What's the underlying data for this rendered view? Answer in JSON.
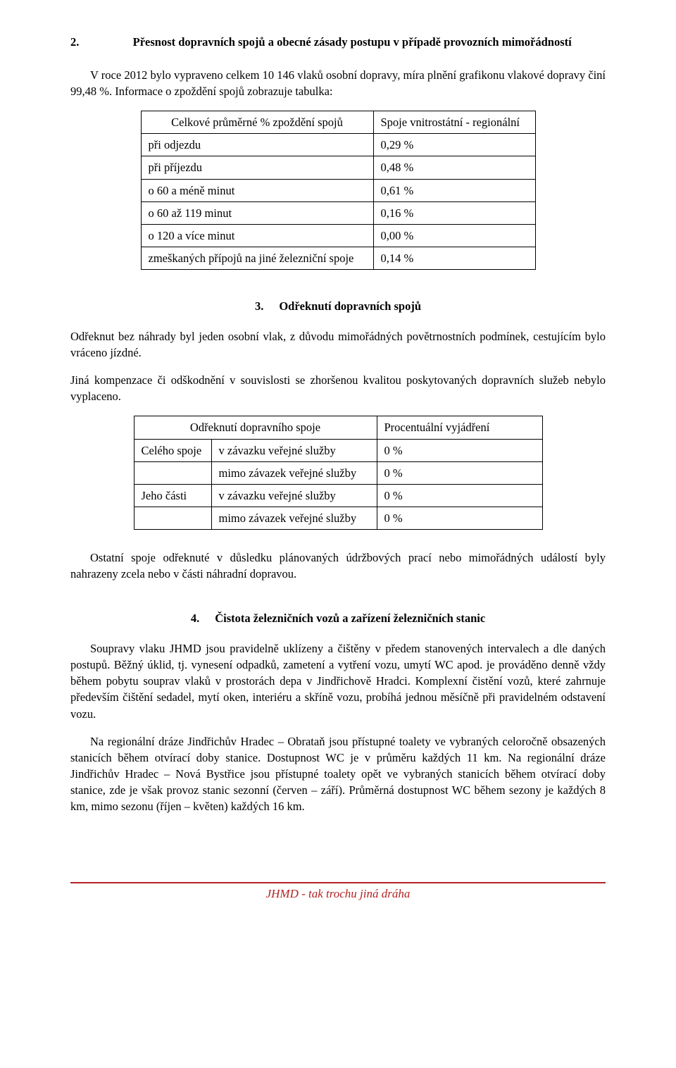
{
  "section2": {
    "num": "2.",
    "title": "Přesnost dopravních spojů a obecné zásady postupu v případě provozních mimořádností",
    "p1": "V roce 2012 bylo vypraveno celkem 10 146 vlaků osobní dopravy, míra plnění grafikonu vlakové dopravy činí 99,48 %. Informace o zpoždění spojů zobrazuje tabulka:",
    "table": {
      "header_left": "Celkové průměrné % zpoždění spojů",
      "header_right": "Spoje vnitrostátní - regionální",
      "rows": [
        {
          "label": "při odjezdu",
          "value": "0,29 %"
        },
        {
          "label": "při příjezdu",
          "value": "0,48 %"
        },
        {
          "label": "o 60 a méně minut",
          "value": "0,61 %"
        },
        {
          "label": "o 60 až 119 minut",
          "value": "0,16 %"
        },
        {
          "label": "o 120 a více minut",
          "value": "0,00 %"
        },
        {
          "label": "zmeškaných přípojů na jiné železniční spoje",
          "value": "0,14 %"
        }
      ]
    }
  },
  "section3": {
    "num": "3.",
    "title": "Odřeknutí dopravních spojů",
    "p1": "Odřeknut bez náhrady byl jeden osobní vlak, z důvodu mimořádných povětrnostních podmínek, cestujícím bylo vráceno jízdné.",
    "p2": "Jiná kompenzace či odškodnění v souvislosti se zhoršenou kvalitou poskytovaných dopravních služeb nebylo vyplaceno.",
    "table": {
      "header_mid": "Odřeknutí dopravního spoje",
      "header_right": "Procentuální vyjádření",
      "rows": [
        {
          "c1": "Celého spoje",
          "c2": "v závazku veřejné služby",
          "c3": "0 %"
        },
        {
          "c1": "",
          "c2": "mimo závazek veřejné služby",
          "c3": "0 %"
        },
        {
          "c1": "Jeho části",
          "c2": "v závazku veřejné služby",
          "c3": "0 %"
        },
        {
          "c1": "",
          "c2": "mimo závazek veřejné služby",
          "c3": "0 %"
        }
      ]
    },
    "p3": "Ostatní spoje odřeknuté v důsledku plánovaných údržbových prací nebo mimořádných událostí byly nahrazeny zcela nebo v části náhradní dopravou."
  },
  "section4": {
    "num": "4.",
    "title": "Čistota železničních vozů a zařízení železničních stanic",
    "p1": "Soupravy vlaku JHMD jsou pravidelně uklízeny a čištěny v předem stanovených intervalech a dle daných postupů. Běžný úklid, tj. vynesení odpadků, zametení a vytření vozu, umytí WC apod. je prováděno denně vždy během pobytu souprav vlaků v prostorách depa v Jindřichově Hradci. Komplexní čistění vozů, které zahrnuje především čištění sedadel, mytí oken, interiéru a skříně vozu, probíhá jednou měsíčně při pravidelném odstavení vozu.",
    "p2": "Na regionální dráze Jindřichův Hradec – Obrataň jsou přístupné toalety ve vybraných celoročně obsazených stanicích během otvírací doby stanice. Dostupnost WC je v průměru každých 11 km. Na regionální dráze Jindřichův Hradec – Nová Bystřice jsou přístupné toalety opět ve vybraných stanicích během otvírací doby stanice, zde je však provoz stanic sezonní (červen – září). Průměrná dostupnost WC během sezony je každých 8 km, mimo sezonu (říjen – květen) každých 16 km."
  },
  "footer": {
    "text": "JHMD - tak trochu jiná dráha"
  }
}
